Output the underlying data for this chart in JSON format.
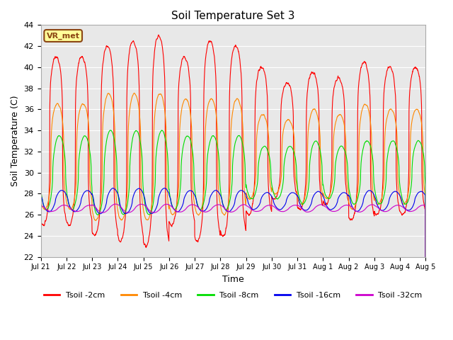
{
  "title": "Soil Temperature Set 3",
  "xlabel": "Time",
  "ylabel": "Soil Temperature (C)",
  "ylim": [
    22,
    44
  ],
  "yticks": [
    22,
    24,
    26,
    28,
    30,
    32,
    34,
    36,
    38,
    40,
    42,
    44
  ],
  "x_labels": [
    "Jul 21",
    "Jul 22",
    "Jul 23",
    "Jul 24",
    "Jul 25",
    "Jul 26",
    "Jul 27",
    "Jul 28",
    "Jul 29",
    "Jul 30",
    "Jul 31",
    "Aug 1",
    "Aug 2",
    "Aug 3",
    "Aug 4",
    "Aug 5"
  ],
  "bg_color": "#e8e8e8",
  "legend_label": "VR_met",
  "series_colors": {
    "Tsoil -2cm": "#ff0000",
    "Tsoil -4cm": "#ff8800",
    "Tsoil -8cm": "#00dd00",
    "Tsoil -16cm": "#0000ee",
    "Tsoil -32cm": "#cc00cc"
  },
  "n_days": 15,
  "samples_per_day": 144,
  "peak_amps_2cm": [
    8.0,
    8.0,
    9.0,
    9.5,
    10.0,
    8.0,
    9.5,
    9.0,
    7.0,
    5.5,
    6.5,
    6.0,
    7.5,
    7.0,
    7.0
  ],
  "peak_amps_4cm": [
    5.0,
    5.0,
    6.0,
    6.0,
    6.0,
    5.5,
    5.5,
    5.5,
    4.0,
    3.5,
    4.5,
    4.0,
    5.0,
    4.5,
    4.5
  ],
  "peak_amps_8cm": [
    3.5,
    3.5,
    4.0,
    4.0,
    4.0,
    3.5,
    3.5,
    3.5,
    2.5,
    2.5,
    3.0,
    2.5,
    3.0,
    3.0,
    3.0
  ],
  "peak_amps_16cm": [
    1.0,
    1.0,
    1.2,
    1.2,
    1.2,
    1.0,
    1.0,
    1.0,
    0.8,
    0.8,
    0.9,
    0.8,
    1.0,
    0.9,
    0.9
  ],
  "peak_amps_32cm": [
    0.3,
    0.3,
    0.4,
    0.4,
    0.4,
    0.35,
    0.35,
    0.35,
    0.3,
    0.3,
    0.35,
    0.3,
    0.35,
    0.3,
    0.3
  ],
  "base_2cm": 33.0,
  "base_4cm": 31.5,
  "base_8cm": 30.0,
  "base_16cm": 27.3,
  "base_32cm": 26.6,
  "phase_2cm": 0.6,
  "phase_4cm": 0.65,
  "phase_8cm": 0.72,
  "phase_16cm": 0.82,
  "phase_32cm": 0.92
}
